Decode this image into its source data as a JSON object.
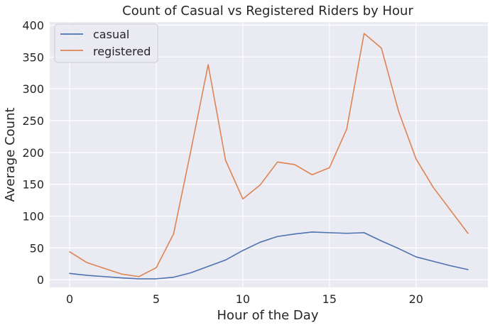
{
  "chart_data": {
    "type": "line",
    "title": "Count of Casual vs Registered Riders by Hour",
    "xlabel": "Hour of the Day",
    "ylabel": "Average Count",
    "xlim": [
      -1.15,
      24.15
    ],
    "ylim": [
      -12,
      405
    ],
    "xticks": [
      0,
      5,
      10,
      15,
      20
    ],
    "yticks": [
      0,
      50,
      100,
      150,
      200,
      250,
      300,
      350,
      400
    ],
    "grid": true,
    "legend_position": "top-left",
    "x": [
      0,
      1,
      2,
      3,
      4,
      5,
      6,
      7,
      8,
      9,
      10,
      11,
      12,
      13,
      14,
      15,
      16,
      17,
      18,
      19,
      20,
      21,
      22,
      23
    ],
    "series": [
      {
        "name": "casual",
        "color": "#4c72b0",
        "values": [
          10,
          7,
          5,
          3,
          1.5,
          1.5,
          4,
          11,
          21,
          31,
          46,
          59,
          68,
          72,
          75,
          74,
          73,
          74,
          61,
          49,
          36,
          29,
          22,
          16
        ]
      },
      {
        "name": "registered",
        "color": "#dd8452",
        "values": [
          44,
          27,
          18,
          9,
          5,
          19,
          72,
          203,
          338,
          188,
          127,
          149,
          185,
          181,
          165,
          176,
          237,
          387,
          364,
          264,
          190,
          145,
          109,
          73
        ]
      }
    ],
    "colors": {
      "plot_background": "#eaeaf2",
      "grid": "#ffffff",
      "text": "#262626"
    }
  }
}
